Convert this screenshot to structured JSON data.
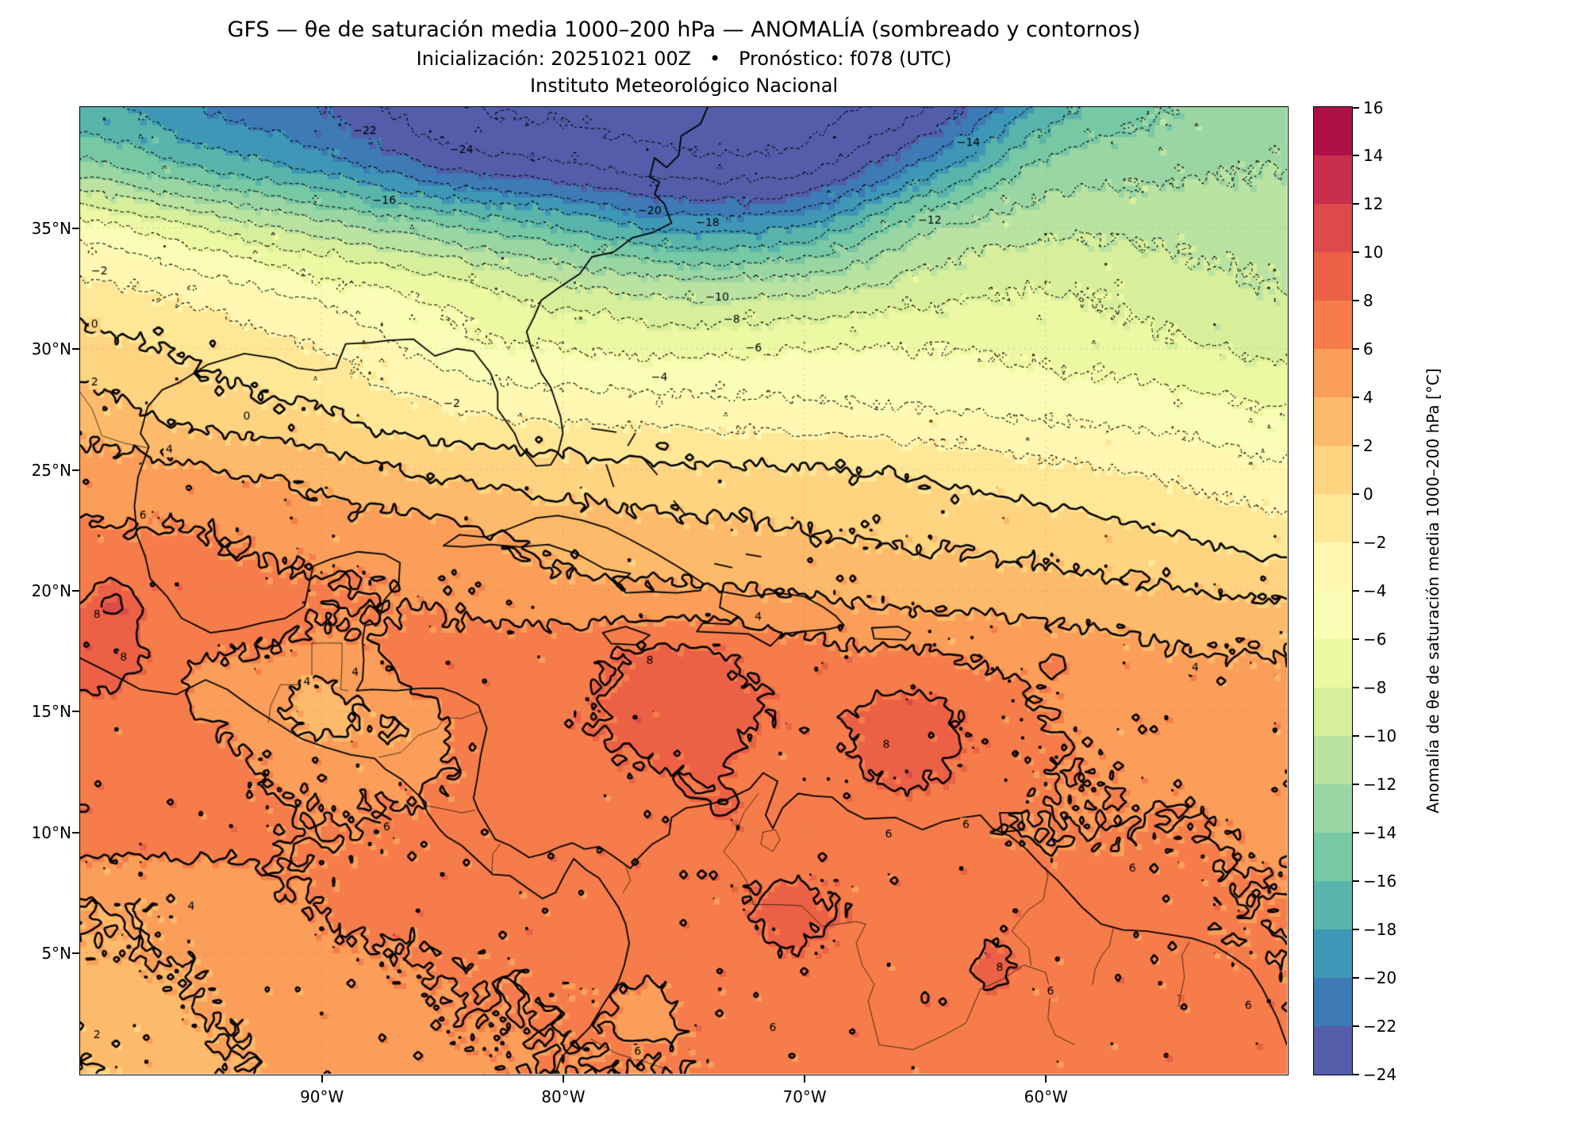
{
  "titles": {
    "line1": "GFS — θe de saturación media 1000–200 hPa — ANOMALÍA (sombreado y contornos)",
    "line2": "Inicialización: 20251021 00Z   •   Pronóstico: f078 (UTC)",
    "line3": "Instituto Meteorológico Nacional"
  },
  "axes": {
    "x_ticks": [
      {
        "label": "90°W",
        "lon": -90
      },
      {
        "label": "80°W",
        "lon": -80
      },
      {
        "label": "70°W",
        "lon": -70
      },
      {
        "label": "60°W",
        "lon": -60
      }
    ],
    "y_ticks": [
      {
        "label": "35°N",
        "lat": 35
      },
      {
        "label": "30°N",
        "lat": 30
      },
      {
        "label": "25°N",
        "lat": 25
      },
      {
        "label": "20°N",
        "lat": 20
      },
      {
        "label": "15°N",
        "lat": 15
      },
      {
        "label": "10°N",
        "lat": 10
      },
      {
        "label": "5°N",
        "lat": 5
      }
    ]
  },
  "colorbar": {
    "label": "Anomalía de θe de saturación media 1000–200 hPa [°C]",
    "min": -24,
    "max": 16,
    "step": 2,
    "tick_values": [
      16,
      14,
      12,
      10,
      8,
      6,
      4,
      2,
      0,
      -2,
      -4,
      -6,
      -8,
      -10,
      -12,
      -14,
      -16,
      -18,
      -20,
      -22,
      -24
    ]
  },
  "chart_data": {
    "type": "heatmap",
    "title": "GFS — θe de saturación media 1000–200 hPa — ANOMALÍA (sombreado y contornos)",
    "subtitle": "Inicialización: 20251021 00Z • Pronóstico: f078 (UTC)",
    "institution": "Instituto Meteorológico Nacional",
    "units": "°C",
    "extent": {
      "lon_min": -100,
      "lon_max": -50,
      "lat_min": 0,
      "lat_max": 40
    },
    "colormap_name": "Spectral_r",
    "colormap_anchors": [
      "#9e0142",
      "#d53e4f",
      "#f46d43",
      "#fdae61",
      "#fee08b",
      "#ffffbf",
      "#e6f598",
      "#abdda4",
      "#66c2a5",
      "#3288bd",
      "#5e4fa2"
    ],
    "contour_levels": [
      -26,
      -24,
      -22,
      -20,
      -18,
      -16,
      -14,
      -12,
      -10,
      -8,
      -6,
      -4,
      -2,
      0,
      2,
      4,
      6,
      8,
      10
    ],
    "grid": {
      "lons": [
        -100,
        -95,
        -90,
        -85,
        -80,
        -75,
        -70,
        -65,
        -60,
        -55,
        -50
      ],
      "lats": [
        40,
        37.5,
        35,
        32.5,
        30,
        27.5,
        25,
        22.5,
        20,
        17.5,
        15,
        12.5,
        10,
        7.5,
        5,
        2.5,
        0
      ],
      "values": [
        [
          -17,
          -20,
          -22,
          -25.5,
          -26.5,
          -27,
          -27,
          -24,
          -17,
          -14,
          -13
        ],
        [
          -13,
          -16,
          -18.5,
          -22,
          -23.5,
          -25,
          -24.5,
          -19,
          -13.5,
          -12.5,
          -12
        ],
        [
          -5,
          -8,
          -11,
          -13.5,
          -16,
          -18.5,
          -17.5,
          -12.5,
          -10.5,
          -10.5,
          -11
        ],
        [
          -1.5,
          -3,
          -5,
          -7,
          -9.5,
          -11,
          -10.5,
          -9,
          -8,
          -9,
          -10
        ],
        [
          0.8,
          -0.5,
          -2,
          -5,
          -6,
          -6.5,
          -6,
          -6,
          -6.5,
          -7.5,
          -8.5
        ],
        [
          3,
          1,
          0,
          -1.8,
          -2.8,
          -3.2,
          -3.5,
          -4,
          -4.5,
          -5,
          -6
        ],
        [
          4.8,
          4.2,
          3,
          1.5,
          0.8,
          0.3,
          0.2,
          -0.5,
          -1.5,
          -2.5,
          -3.5
        ],
        [
          6.2,
          6,
          5,
          4.5,
          3,
          2.5,
          2,
          1.5,
          1,
          0,
          -1.5
        ],
        [
          7.5,
          6.8,
          6.2,
          5.5,
          4.5,
          4.2,
          3.8,
          3.2,
          2.8,
          2.2,
          1.5
        ],
        [
          8.5,
          7,
          5.8,
          6.5,
          7,
          7.8,
          6.5,
          6,
          5,
          4.2,
          4
        ],
        [
          7.5,
          6.5,
          4.5,
          6.5,
          7.5,
          8.6,
          7.5,
          8.2,
          6,
          5,
          4.5
        ],
        [
          7.2,
          6.8,
          5.5,
          6.2,
          7,
          8,
          7,
          8,
          6.2,
          5.5,
          5
        ],
        [
          7,
          6.8,
          6,
          6.5,
          7.2,
          7,
          7.2,
          6.8,
          6,
          6.2,
          5.5
        ],
        [
          4.4,
          4.8,
          6.2,
          6.8,
          7,
          7.5,
          7.8,
          7.2,
          6.8,
          6.5,
          6
        ],
        [
          3.8,
          4.3,
          5.5,
          6.2,
          6.5,
          7,
          7.5,
          7.2,
          7,
          6.5,
          6.2
        ],
        [
          2.8,
          4,
          5,
          5.8,
          6.2,
          6.5,
          7,
          7.5,
          7.2,
          6.8,
          6.5
        ],
        [
          1.8,
          3.5,
          4.8,
          5.5,
          6,
          6.2,
          6.8,
          7.2,
          7,
          6.8,
          6.5
        ]
      ]
    },
    "bumps": [
      [
        -98.6,
        19.5,
        3.2,
        0.55
      ],
      [
        -98.9,
        17.5,
        1.2,
        0.9
      ],
      [
        -75.0,
        15.8,
        0.7,
        2.0
      ],
      [
        -66.2,
        13.8,
        1.0,
        1.2
      ],
      [
        -90.3,
        15.4,
        -1.2,
        1.4
      ],
      [
        -86.5,
        14.2,
        -1.8,
        1.1
      ],
      [
        -94.6,
        16.3,
        -1.6,
        1.0
      ],
      [
        -62.2,
        4.6,
        1.6,
        0.7
      ],
      [
        -70.6,
        6.4,
        0.9,
        1.0
      ],
      [
        -59.6,
        16.9,
        1.6,
        0.35
      ],
      [
        -73.4,
        10.8,
        0.9,
        0.9
      ],
      [
        -76.6,
        2.8,
        -1.5,
        0.8
      ],
      [
        -85.8,
        17.0,
        0.9,
        0.9
      ],
      [
        -57.6,
        3.2,
        0.8,
        0.8
      ]
    ],
    "contour_labels": [
      {
        "v": -22,
        "lon": -88.2,
        "lat": 39.0
      },
      {
        "v": -24,
        "lon": -84.2,
        "lat": 38.2
      },
      {
        "v": -20,
        "lon": -76.4,
        "lat": 35.7
      },
      {
        "v": -18,
        "lon": -74.0,
        "lat": 35.2
      },
      {
        "v": -16,
        "lon": -87.4,
        "lat": 36.1
      },
      {
        "v": -14,
        "lon": -63.2,
        "lat": 38.5
      },
      {
        "v": -12,
        "lon": -64.8,
        "lat": 35.3
      },
      {
        "v": -10,
        "lon": -73.6,
        "lat": 32.1
      },
      {
        "v": -8,
        "lon": -73.0,
        "lat": 31.2
      },
      {
        "v": -6,
        "lon": -72.1,
        "lat": 30.0
      },
      {
        "v": -4,
        "lon": -76.0,
        "lat": 28.8
      },
      {
        "v": -2,
        "lon": -84.6,
        "lat": 27.7
      },
      {
        "v": -2,
        "lon": -99.2,
        "lat": 33.2
      },
      {
        "v": 0,
        "lon": -93.1,
        "lat": 27.2
      },
      {
        "v": 0,
        "lon": -99.4,
        "lat": 31.0
      },
      {
        "v": 2,
        "lon": -99.4,
        "lat": 28.6
      },
      {
        "v": 4,
        "lon": -96.3,
        "lat": 25.8
      },
      {
        "v": 6,
        "lon": -97.4,
        "lat": 23.1
      },
      {
        "v": 8,
        "lon": -99.3,
        "lat": 19.0
      },
      {
        "v": 8,
        "lon": -98.2,
        "lat": 17.2
      },
      {
        "v": 4,
        "lon": -90.6,
        "lat": 16.2
      },
      {
        "v": 4,
        "lon": -88.6,
        "lat": 16.6
      },
      {
        "v": 8,
        "lon": -76.4,
        "lat": 17.1
      },
      {
        "v": 4,
        "lon": -71.9,
        "lat": 18.9
      },
      {
        "v": 8,
        "lon": -66.6,
        "lat": 13.6
      },
      {
        "v": 6,
        "lon": -63.3,
        "lat": 10.3
      },
      {
        "v": 6,
        "lon": -66.5,
        "lat": 9.9
      },
      {
        "v": 6,
        "lon": -87.3,
        "lat": 10.2
      },
      {
        "v": 4,
        "lon": -95.4,
        "lat": 6.9
      },
      {
        "v": 4,
        "lon": -53.8,
        "lat": 16.8
      },
      {
        "v": 6,
        "lon": -56.4,
        "lat": 8.5
      },
      {
        "v": 6,
        "lon": -59.8,
        "lat": 3.4
      },
      {
        "v": 8,
        "lon": -61.9,
        "lat": 4.4
      },
      {
        "v": 6,
        "lon": -71.3,
        "lat": 1.9
      },
      {
        "v": 6,
        "lon": -76.9,
        "lat": 0.9
      },
      {
        "v": 2,
        "lon": -99.3,
        "lat": 1.6
      },
      {
        "v": 6,
        "lon": -51.6,
        "lat": 2.8
      }
    ]
  }
}
